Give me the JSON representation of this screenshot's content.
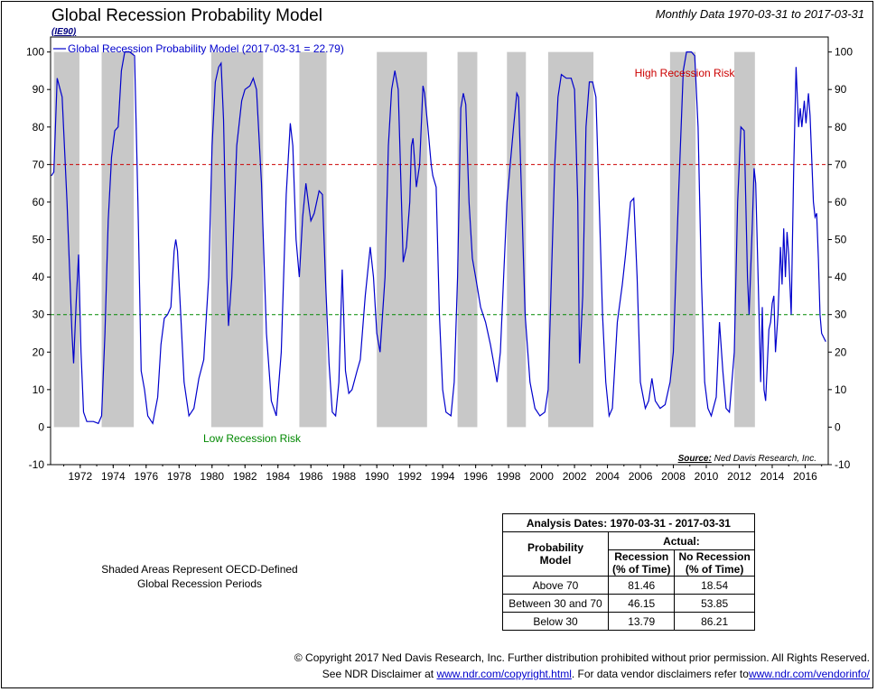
{
  "header": {
    "title": "Global Recession Probability Model",
    "code": "(IE90)",
    "date_range": "Monthly Data 1970-03-31 to 2017-03-31"
  },
  "chart_data": {
    "type": "line",
    "title": "Global Recession Probability Model",
    "xlabel": "",
    "ylabel": "",
    "xlim": [
      1970.2,
      2017.4
    ],
    "ylim": [
      -10,
      104
    ],
    "grid": false,
    "legend_position": "top-left",
    "series": [
      {
        "name": "Global Recession Probability Model (2017-03-31 = 22.79)",
        "color": "#0000cc",
        "points": [
          [
            1970.25,
            67
          ],
          [
            1970.4,
            68
          ],
          [
            1970.6,
            93
          ],
          [
            1970.9,
            88
          ],
          [
            1971.2,
            60
          ],
          [
            1971.5,
            25
          ],
          [
            1971.6,
            17
          ],
          [
            1971.75,
            33
          ],
          [
            1971.9,
            46
          ],
          [
            1972.05,
            20
          ],
          [
            1972.2,
            4
          ],
          [
            1972.4,
            1.5
          ],
          [
            1972.8,
            1.5
          ],
          [
            1973.1,
            1
          ],
          [
            1973.3,
            3
          ],
          [
            1973.5,
            25
          ],
          [
            1973.7,
            55
          ],
          [
            1973.9,
            72
          ],
          [
            1974.1,
            79
          ],
          [
            1974.3,
            80
          ],
          [
            1974.5,
            95
          ],
          [
            1974.7,
            100
          ],
          [
            1975.0,
            100
          ],
          [
            1975.3,
            99
          ],
          [
            1975.5,
            60
          ],
          [
            1975.7,
            15
          ],
          [
            1975.9,
            10
          ],
          [
            1976.1,
            3
          ],
          [
            1976.4,
            1
          ],
          [
            1976.7,
            8
          ],
          [
            1976.9,
            22
          ],
          [
            1977.1,
            29
          ],
          [
            1977.3,
            30
          ],
          [
            1977.5,
            32
          ],
          [
            1977.7,
            47
          ],
          [
            1977.8,
            50
          ],
          [
            1977.9,
            47
          ],
          [
            1978.1,
            30
          ],
          [
            1978.3,
            12
          ],
          [
            1978.6,
            3
          ],
          [
            1978.9,
            5
          ],
          [
            1979.2,
            13
          ],
          [
            1979.5,
            18
          ],
          [
            1979.8,
            40
          ],
          [
            1980.0,
            75
          ],
          [
            1980.2,
            92
          ],
          [
            1980.4,
            96
          ],
          [
            1980.55,
            97
          ],
          [
            1980.7,
            82
          ],
          [
            1980.9,
            40
          ],
          [
            1981.0,
            27
          ],
          [
            1981.2,
            40
          ],
          [
            1981.5,
            75
          ],
          [
            1981.8,
            87
          ],
          [
            1982.0,
            90
          ],
          [
            1982.3,
            91
          ],
          [
            1982.5,
            93
          ],
          [
            1982.7,
            90
          ],
          [
            1983.0,
            65
          ],
          [
            1983.3,
            25
          ],
          [
            1983.6,
            7
          ],
          [
            1983.9,
            3
          ],
          [
            1984.2,
            20
          ],
          [
            1984.5,
            62
          ],
          [
            1984.75,
            81
          ],
          [
            1984.9,
            75
          ],
          [
            1985.1,
            50
          ],
          [
            1985.3,
            40
          ],
          [
            1985.5,
            56
          ],
          [
            1985.7,
            65
          ],
          [
            1985.9,
            58
          ],
          [
            1986.0,
            55
          ],
          [
            1986.2,
            57
          ],
          [
            1986.5,
            63
          ],
          [
            1986.7,
            62
          ],
          [
            1986.9,
            38
          ],
          [
            1987.1,
            17
          ],
          [
            1987.3,
            4
          ],
          [
            1987.5,
            3
          ],
          [
            1987.7,
            12
          ],
          [
            1987.9,
            42
          ],
          [
            1988.1,
            15
          ],
          [
            1988.3,
            9
          ],
          [
            1988.5,
            10
          ],
          [
            1988.8,
            15
          ],
          [
            1989.0,
            18
          ],
          [
            1989.3,
            35
          ],
          [
            1989.6,
            48
          ],
          [
            1989.8,
            40
          ],
          [
            1990.0,
            25
          ],
          [
            1990.2,
            20
          ],
          [
            1990.5,
            40
          ],
          [
            1990.7,
            75
          ],
          [
            1990.9,
            90
          ],
          [
            1991.1,
            95
          ],
          [
            1991.3,
            90
          ],
          [
            1991.5,
            60
          ],
          [
            1991.6,
            44
          ],
          [
            1991.8,
            48
          ],
          [
            1992.0,
            60
          ],
          [
            1992.1,
            75
          ],
          [
            1992.2,
            77
          ],
          [
            1992.4,
            64
          ],
          [
            1992.6,
            70
          ],
          [
            1992.8,
            91
          ],
          [
            1992.9,
            89
          ],
          [
            1993.1,
            80
          ],
          [
            1993.3,
            70
          ],
          [
            1993.4,
            67
          ],
          [
            1993.6,
            64
          ],
          [
            1993.8,
            30
          ],
          [
            1994.0,
            10
          ],
          [
            1994.2,
            4
          ],
          [
            1994.5,
            3
          ],
          [
            1994.7,
            12
          ],
          [
            1994.9,
            40
          ],
          [
            1995.1,
            85
          ],
          [
            1995.25,
            89
          ],
          [
            1995.4,
            86
          ],
          [
            1995.6,
            60
          ],
          [
            1995.8,
            45
          ],
          [
            1996.0,
            40
          ],
          [
            1996.3,
            32
          ],
          [
            1996.6,
            28
          ],
          [
            1996.9,
            22
          ],
          [
            1997.1,
            17
          ],
          [
            1997.3,
            12
          ],
          [
            1997.5,
            20
          ],
          [
            1997.7,
            40
          ],
          [
            1997.9,
            60
          ],
          [
            1998.1,
            70
          ],
          [
            1998.3,
            80
          ],
          [
            1998.5,
            89
          ],
          [
            1998.6,
            88
          ],
          [
            1998.8,
            60
          ],
          [
            1999.0,
            30
          ],
          [
            1999.3,
            12
          ],
          [
            1999.6,
            5
          ],
          [
            1999.9,
            3
          ],
          [
            2000.2,
            4
          ],
          [
            2000.4,
            10
          ],
          [
            2000.6,
            40
          ],
          [
            2000.8,
            70
          ],
          [
            2001.0,
            88
          ],
          [
            2001.2,
            94
          ],
          [
            2001.5,
            93
          ],
          [
            2001.8,
            93
          ],
          [
            2002.0,
            90
          ],
          [
            2002.2,
            60
          ],
          [
            2002.3,
            17
          ],
          [
            2002.5,
            35
          ],
          [
            2002.7,
            80
          ],
          [
            2002.9,
            92
          ],
          [
            2003.1,
            92
          ],
          [
            2003.3,
            88
          ],
          [
            2003.5,
            60
          ],
          [
            2003.7,
            30
          ],
          [
            2003.9,
            12
          ],
          [
            2004.1,
            3
          ],
          [
            2004.3,
            5
          ],
          [
            2004.6,
            28
          ],
          [
            2004.9,
            38
          ],
          [
            2005.1,
            46
          ],
          [
            2005.4,
            60
          ],
          [
            2005.6,
            61
          ],
          [
            2005.8,
            40
          ],
          [
            2006.0,
            12
          ],
          [
            2006.3,
            5
          ],
          [
            2006.5,
            7
          ],
          [
            2006.7,
            13
          ],
          [
            2006.9,
            7
          ],
          [
            2007.2,
            5
          ],
          [
            2007.5,
            6
          ],
          [
            2007.8,
            12
          ],
          [
            2008.0,
            20
          ],
          [
            2008.3,
            60
          ],
          [
            2008.6,
            95
          ],
          [
            2008.8,
            100
          ],
          [
            2009.1,
            100
          ],
          [
            2009.3,
            99
          ],
          [
            2009.5,
            80
          ],
          [
            2009.7,
            40
          ],
          [
            2009.9,
            12
          ],
          [
            2010.1,
            5
          ],
          [
            2010.3,
            3
          ],
          [
            2010.6,
            8
          ],
          [
            2010.8,
            28
          ],
          [
            2011.0,
            15
          ],
          [
            2011.2,
            5
          ],
          [
            2011.4,
            4
          ],
          [
            2011.7,
            20
          ],
          [
            2011.9,
            60
          ],
          [
            2012.1,
            80
          ],
          [
            2012.3,
            79
          ],
          [
            2012.5,
            40
          ],
          [
            2012.6,
            30
          ],
          [
            2012.8,
            55
          ],
          [
            2012.9,
            69
          ],
          [
            2013.0,
            65
          ],
          [
            2013.2,
            30
          ],
          [
            2013.3,
            12
          ],
          [
            2013.4,
            32
          ],
          [
            2013.5,
            10
          ],
          [
            2013.6,
            7
          ],
          [
            2013.8,
            26
          ],
          [
            2013.9,
            28
          ],
          [
            2014.0,
            33
          ],
          [
            2014.1,
            35
          ],
          [
            2014.2,
            20
          ],
          [
            2014.35,
            30
          ],
          [
            2014.5,
            48
          ],
          [
            2014.6,
            38
          ],
          [
            2014.7,
            53
          ],
          [
            2014.8,
            40
          ],
          [
            2014.9,
            52
          ],
          [
            2015.0,
            46
          ],
          [
            2015.15,
            30
          ],
          [
            2015.3,
            68
          ],
          [
            2015.45,
            96
          ],
          [
            2015.6,
            80
          ],
          [
            2015.7,
            85
          ],
          [
            2015.8,
            80
          ],
          [
            2015.95,
            87
          ],
          [
            2016.05,
            81
          ],
          [
            2016.2,
            89
          ],
          [
            2016.3,
            83
          ],
          [
            2016.5,
            60
          ],
          [
            2016.6,
            56
          ],
          [
            2016.7,
            57
          ],
          [
            2016.8,
            45
          ],
          [
            2016.9,
            30
          ],
          [
            2017.0,
            25
          ],
          [
            2017.25,
            22.79
          ]
        ]
      },
      {
        "name": "",
        "color": "#cc0000",
        "dashed": true,
        "points": [
          [
            1970.2,
            70
          ],
          [
            2017.4,
            70
          ]
        ]
      },
      {
        "name": "",
        "color": "#008800",
        "dashed": true,
        "points": [
          [
            1970.2,
            30
          ],
          [
            2017.4,
            30
          ]
        ]
      }
    ],
    "recession_periods": [
      [
        1970.4,
        1971.95
      ],
      [
        1973.3,
        1975.25
      ],
      [
        1979.95,
        1983.1
      ],
      [
        1985.3,
        1986.95
      ],
      [
        1990.0,
        1993.05
      ],
      [
        1994.9,
        1996.1
      ],
      [
        1997.9,
        1999.05
      ],
      [
        2000.4,
        2003.15
      ],
      [
        2007.8,
        2009.35
      ],
      [
        2011.7,
        2012.95
      ]
    ],
    "yticks": [
      -10,
      0,
      10,
      20,
      30,
      40,
      50,
      60,
      70,
      80,
      90,
      100
    ],
    "xticks": [
      1972,
      1974,
      1976,
      1978,
      1980,
      1982,
      1984,
      1986,
      1988,
      1990,
      1992,
      1994,
      1996,
      1998,
      2000,
      2002,
      2004,
      2006,
      2008,
      2010,
      2012,
      2014,
      2016
    ],
    "annotations": {
      "high_risk": "High Recession Risk",
      "low_risk": "Low Recession Risk",
      "source_label": "Source:",
      "source_text": "Ned Davis Research, Inc."
    },
    "colors": {
      "line": "#0000cc",
      "shade": "#c8c8c8",
      "high": "#cc0000",
      "low": "#008800"
    }
  },
  "shade_note": {
    "line1": "Shaded Areas Represent OECD-Defined",
    "line2": "Global Recession Periods"
  },
  "analysis_table": {
    "title": "Analysis Dates: 1970-03-31 - 2017-03-31",
    "actual_header": "Actual:",
    "model_header_1": "Probability",
    "model_header_2": "Model",
    "col1_header_1": "Recession",
    "col1_header_2": "(% of Time)",
    "col2_header_1": "No Recession",
    "col2_header_2": "(% of Time)",
    "rows": [
      {
        "label": "Above 70",
        "recession": "81.46",
        "no_recession": "18.54"
      },
      {
        "label": "Between 30 and 70",
        "recession": "46.15",
        "no_recession": "53.85"
      },
      {
        "label": "Below 30",
        "recession": "13.79",
        "no_recession": "86.21"
      }
    ]
  },
  "footer": {
    "line1": "© Copyright 2017 Ned Davis Research, Inc. Further distribution prohibited without prior permission. All Rights Reserved.",
    "line2_prefix": "See NDR Disclaimer at ",
    "link1": "www.ndr.com/copyright.html",
    "line2_mid": ". For data vendor disclaimers refer to",
    "link2": "www.ndr.com/vendorinfo/"
  }
}
